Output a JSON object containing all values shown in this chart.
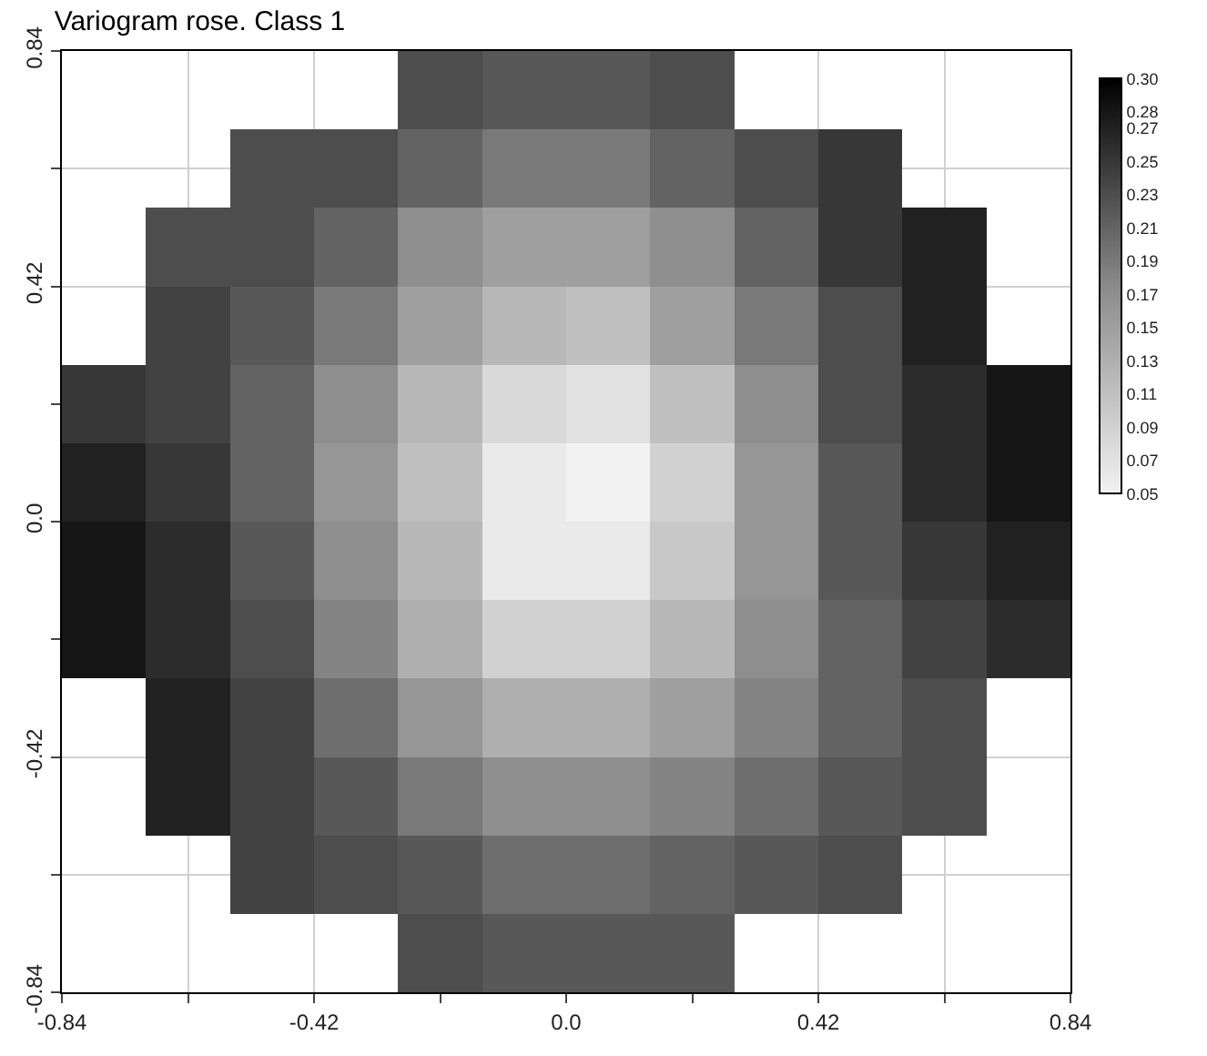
{
  "chart_data": {
    "type": "heatmap",
    "title": "Variogram rose. Class 1",
    "x": [
      -0.77,
      -0.63,
      -0.49,
      -0.35,
      -0.21,
      -0.07,
      0.07,
      0.21,
      0.35,
      0.49,
      0.63,
      0.77
    ],
    "y": [
      0.77,
      0.63,
      0.49,
      0.35,
      0.21,
      0.07,
      -0.07,
      -0.21,
      -0.35,
      -0.49,
      -0.63,
      -0.77
    ],
    "cells": [
      [
        null,
        null,
        null,
        null,
        0.23,
        0.22,
        0.22,
        0.23,
        null,
        null,
        null,
        null
      ],
      [
        null,
        null,
        0.23,
        0.23,
        0.21,
        0.19,
        0.19,
        0.21,
        0.23,
        0.25,
        null,
        null
      ],
      [
        null,
        0.23,
        0.23,
        0.21,
        0.17,
        0.15,
        0.15,
        0.17,
        0.21,
        0.25,
        0.27,
        null
      ],
      [
        null,
        0.24,
        0.22,
        0.19,
        0.15,
        0.12,
        0.11,
        0.15,
        0.19,
        0.23,
        0.27,
        null
      ],
      [
        0.25,
        0.24,
        0.21,
        0.17,
        0.12,
        0.08,
        0.07,
        0.11,
        0.17,
        0.23,
        0.26,
        0.28
      ],
      [
        0.27,
        0.25,
        0.21,
        0.16,
        0.11,
        0.06,
        0.05,
        0.09,
        0.16,
        0.22,
        0.26,
        0.28
      ],
      [
        0.28,
        0.26,
        0.22,
        0.17,
        0.12,
        0.06,
        0.06,
        0.1,
        0.16,
        0.22,
        0.25,
        0.27
      ],
      [
        0.28,
        0.26,
        0.23,
        0.18,
        0.13,
        0.09,
        0.09,
        0.12,
        0.17,
        0.21,
        0.24,
        0.26
      ],
      [
        null,
        0.27,
        0.24,
        0.2,
        0.16,
        0.13,
        0.13,
        0.15,
        0.18,
        0.21,
        0.23,
        null
      ],
      [
        null,
        0.27,
        0.24,
        0.22,
        0.19,
        0.17,
        0.17,
        0.18,
        0.2,
        0.22,
        0.23,
        null
      ],
      [
        null,
        null,
        0.24,
        0.23,
        0.22,
        0.2,
        0.2,
        0.21,
        0.22,
        0.23,
        null,
        null
      ],
      [
        null,
        null,
        null,
        null,
        0.23,
        0.22,
        0.22,
        0.22,
        null,
        null,
        null,
        null
      ]
    ],
    "clim": [
      0.05,
      0.3
    ],
    "cticks": [
      0.05,
      0.07,
      0.09,
      0.11,
      0.13,
      0.15,
      0.17,
      0.19,
      0.21,
      0.23,
      0.25,
      0.27,
      0.28,
      {
        "value": 0.3,
        "label": "0.30"
      }
    ],
    "xlim": [
      -0.84,
      0.84
    ],
    "ylim": [
      -0.84,
      0.84
    ],
    "xticks": [
      -0.84,
      {
        "value": -0.63,
        "label": null
      },
      -0.42,
      {
        "value": -0.21,
        "label": null
      },
      {
        "value": 0,
        "label": "0.0"
      },
      {
        "value": 0.21,
        "label": null
      },
      0.42,
      {
        "value": 0.63,
        "label": null
      },
      0.84
    ],
    "yticks": [
      -0.84,
      {
        "value": -0.63,
        "label": null
      },
      -0.42,
      {
        "value": -0.21,
        "label": null
      },
      {
        "value": 0,
        "label": "0.0"
      },
      {
        "value": 0.21,
        "label": null
      },
      0.42,
      {
        "value": 0.63,
        "label": null
      },
      0.84
    ],
    "grid": true
  }
}
